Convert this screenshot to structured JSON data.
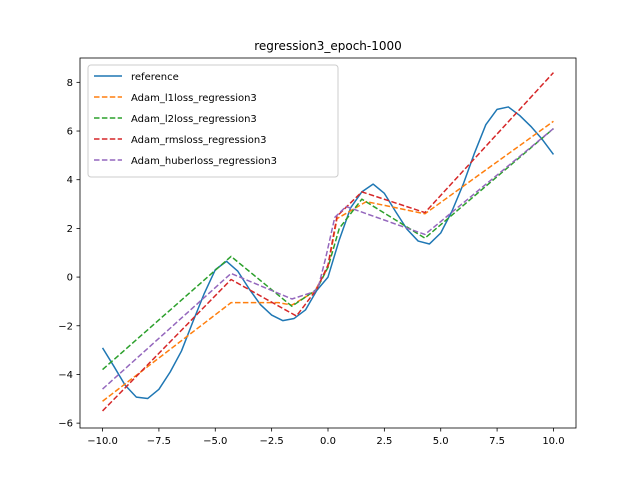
{
  "chart_data": {
    "type": "line",
    "title": "regression3_epoch-1000",
    "xlabel": "",
    "ylabel": "",
    "xlim": [
      -11,
      11
    ],
    "ylim": [
      -6.2,
      9.0
    ],
    "xticks": [
      -10.0,
      -7.5,
      -5.0,
      -2.5,
      0.0,
      2.5,
      5.0,
      7.5,
      10.0
    ],
    "xtick_labels": [
      "−10.0",
      "−7.5",
      "−5.0",
      "−2.5",
      "0.0",
      "2.5",
      "5.0",
      "7.5",
      "10.0"
    ],
    "yticks": [
      -6,
      -4,
      -2,
      0,
      2,
      4,
      6,
      8
    ],
    "ytick_labels": [
      "−6",
      "−4",
      "−2",
      "0",
      "2",
      "4",
      "6",
      "8"
    ],
    "grid": false,
    "legend_position": "top-left",
    "series": [
      {
        "name": "reference",
        "color": "#1f77b4",
        "dash": "solid",
        "x": [
          -10.0,
          -9.5,
          -9.0,
          -8.5,
          -8.0,
          -7.5,
          -7.0,
          -6.5,
          -6.0,
          -5.5,
          -5.0,
          -4.5,
          -4.0,
          -3.5,
          -3.0,
          -2.5,
          -2.0,
          -1.5,
          -1.0,
          -0.5,
          0.0,
          0.5,
          1.0,
          1.5,
          2.0,
          2.5,
          3.0,
          3.5,
          4.0,
          4.5,
          5.0,
          5.5,
          6.0,
          6.5,
          7.0,
          7.5,
          8.0,
          8.5,
          9.0,
          9.5,
          10.0
        ],
        "y": [
          -2.91,
          -3.66,
          -4.44,
          -4.93,
          -4.99,
          -4.61,
          -3.9,
          -3.04,
          -1.85,
          -0.7,
          0.3,
          0.65,
          0.24,
          -0.48,
          -1.13,
          -1.56,
          -1.79,
          -1.7,
          -1.35,
          -0.55,
          0.0,
          1.53,
          2.84,
          3.5,
          3.82,
          3.44,
          2.69,
          1.97,
          1.48,
          1.36,
          1.81,
          2.71,
          3.82,
          5.1,
          6.26,
          6.89,
          6.99,
          6.64,
          6.19,
          5.66,
          5.04
        ]
      },
      {
        "name": "Adam_l1loss_regression3",
        "color": "#ff7f0e",
        "dash": "dashed",
        "x": [
          -10.0,
          -4.3,
          -2.2,
          -1.6,
          -0.6,
          0.0,
          0.4,
          1.7,
          4.3,
          10.0
        ],
        "y": [
          -5.1,
          -1.05,
          -1.05,
          -1.15,
          -0.6,
          0.4,
          2.4,
          3.1,
          2.6,
          6.4
        ]
      },
      {
        "name": "Adam_l2loss_regression3",
        "color": "#2ca02c",
        "dash": "dashed",
        "x": [
          -10.0,
          -4.3,
          -1.6,
          -0.5,
          0.0,
          0.5,
          1.5,
          4.3,
          10.0
        ],
        "y": [
          -3.8,
          0.85,
          -1.2,
          -0.5,
          0.4,
          2.0,
          3.2,
          1.6,
          6.1
        ]
      },
      {
        "name": "Adam_rmsloss_regression3",
        "color": "#d62728",
        "dash": "dashed",
        "x": [
          -10.0,
          -4.3,
          -1.4,
          -0.5,
          0.0,
          0.4,
          1.5,
          4.3,
          10.0
        ],
        "y": [
          -5.5,
          -0.1,
          -1.6,
          -0.5,
          0.5,
          2.5,
          3.5,
          2.65,
          8.4
        ]
      },
      {
        "name": "Adam_huberloss_regression3",
        "color": "#9467bd",
        "dash": "dashed",
        "x": [
          -10.0,
          -4.3,
          -1.6,
          -0.6,
          -0.4,
          -0.1,
          0.3,
          0.8,
          4.3,
          10.0
        ],
        "y": [
          -4.6,
          0.15,
          -0.9,
          -0.6,
          -0.3,
          0.8,
          2.45,
          2.9,
          1.75,
          6.1
        ]
      }
    ]
  }
}
